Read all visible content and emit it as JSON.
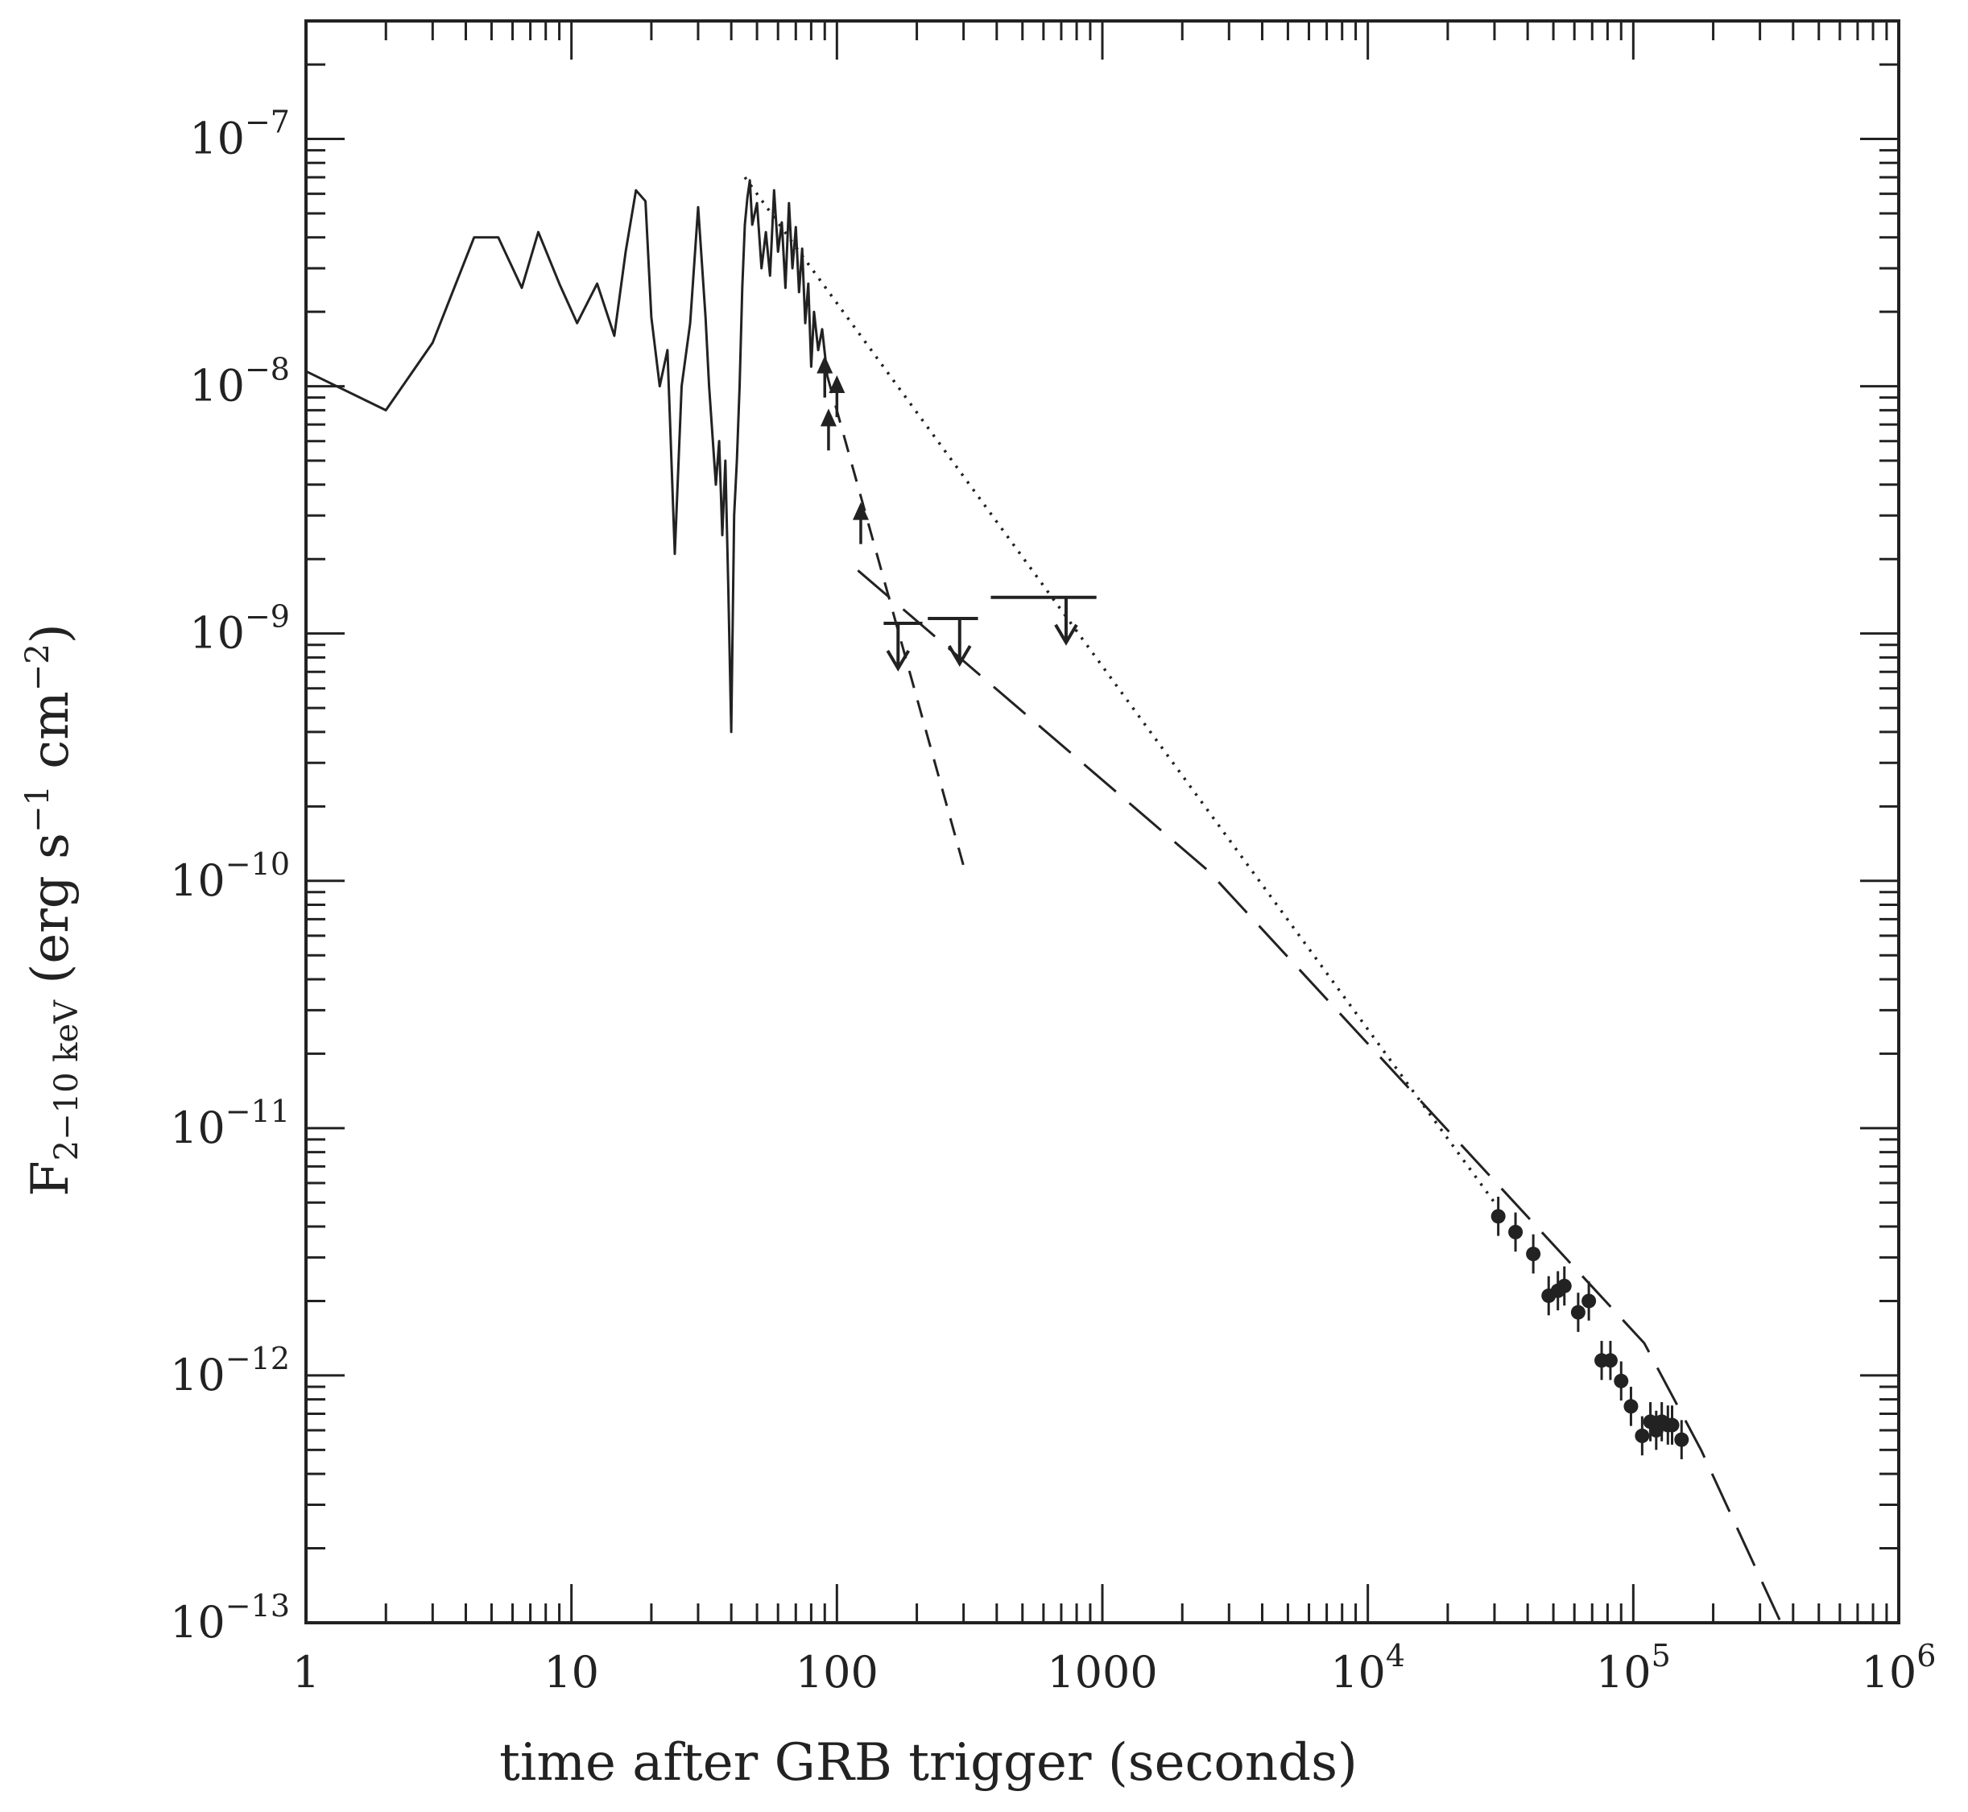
{
  "chart_data": {
    "type": "line",
    "title": "",
    "xlabel": "time after GRB trigger (seconds)",
    "ylabel_parts": {
      "main": "F",
      "sub": "2−10 keV",
      "rest": " (erg s",
      "sup1": "−1",
      "mid": " cm",
      "sup2": "−2",
      "end": ")"
    },
    "x_scale": "log",
    "y_scale": "log",
    "xlim": [
      1,
      1000000
    ],
    "ylim": [
      1e-13,
      3e-07
    ],
    "grid": false,
    "x_ticks": [
      {
        "value": 1,
        "base": "1",
        "exp": ""
      },
      {
        "value": 10,
        "base": "10",
        "exp": ""
      },
      {
        "value": 100,
        "base": "100",
        "exp": ""
      },
      {
        "value": 1000,
        "base": "1000",
        "exp": ""
      },
      {
        "value": 10000,
        "base": "10",
        "exp": "4"
      },
      {
        "value": 100000,
        "base": "10",
        "exp": "5"
      },
      {
        "value": 1000000,
        "base": "10",
        "exp": "6"
      }
    ],
    "y_ticks": [
      {
        "value": 1e-07,
        "base": "10",
        "exp": "−7"
      },
      {
        "value": 1e-08,
        "base": "10",
        "exp": "−8"
      },
      {
        "value": 1e-09,
        "base": "10",
        "exp": "−9"
      },
      {
        "value": 1e-10,
        "base": "10",
        "exp": "−10"
      },
      {
        "value": 1e-11,
        "base": "10",
        "exp": "−11"
      },
      {
        "value": 1e-12,
        "base": "10",
        "exp": "−12"
      },
      {
        "value": 1e-13,
        "base": "10",
        "exp": "−13"
      }
    ],
    "series": [
      {
        "style": "solid",
        "x": [
          1,
          2,
          3,
          4.3,
          5.3,
          6.5,
          7.5,
          9,
          10.5,
          12.5,
          14.5,
          16,
          17.5,
          19,
          20,
          21.5,
          23,
          24.5,
          26,
          28,
          30,
          32,
          33,
          35,
          36,
          37,
          38,
          39,
          40,
          41,
          42,
          43,
          44,
          45,
          46,
          47,
          48,
          50,
          52,
          54,
          56,
          58,
          60,
          62,
          64,
          66,
          68,
          70,
          72,
          74,
          76,
          78,
          80,
          82,
          85,
          88,
          92
        ],
        "y": [
          1.15e-08,
          8e-09,
          1.5e-08,
          4e-08,
          4e-08,
          2.5e-08,
          4.2e-08,
          2.6e-08,
          1.8e-08,
          2.6e-08,
          1.6e-08,
          3.5e-08,
          6.2e-08,
          5.6e-08,
          1.9e-08,
          1e-08,
          1.4e-08,
          2.1e-09,
          1e-08,
          1.8e-08,
          5.3e-08,
          1.9e-08,
          1e-08,
          4e-09,
          6e-09,
          2.5e-09,
          5e-09,
          1.5e-09,
          4e-10,
          3e-09,
          5e-09,
          1e-08,
          2.5e-08,
          4.5e-08,
          5.8e-08,
          6.8e-08,
          4.5e-08,
          5.5e-08,
          3e-08,
          4.2e-08,
          2.8e-08,
          6.2e-08,
          3.5e-08,
          4.6e-08,
          2.5e-08,
          5.5e-08,
          3e-08,
          4.4e-08,
          2.4e-08,
          3.6e-08,
          1.8e-08,
          2.6e-08,
          1.2e-08,
          2e-08,
          1.4e-08,
          1.7e-08,
          1.1e-08
        ]
      },
      {
        "style": "short-dash",
        "x": [
          92,
          300
        ],
        "y": [
          1.1e-08,
          1.15e-10
        ]
      },
      {
        "style": "long-dash",
        "x": [
          120,
          2500,
          110000,
          180000,
          360000
        ],
        "y": [
          1.8e-09,
          1.1e-10,
          1.35e-12,
          5e-13,
          1e-13
        ]
      },
      {
        "style": "dotted",
        "x": [
          45,
          30000
        ],
        "y": [
          7e-08,
          5e-12
        ]
      }
    ],
    "upper_limits": [
      {
        "x": 170,
        "x_lo": 150,
        "x_hi": 210,
        "y": 1.1e-09
      },
      {
        "x": 290,
        "x_lo": 220,
        "x_hi": 340,
        "y": 1.15e-09
      },
      {
        "x": 730,
        "x_lo": 380,
        "x_hi": 950,
        "y": 1.4e-09
      }
    ],
    "lower_limits": [
      {
        "x": 90,
        "y": 9e-09
      },
      {
        "x": 93,
        "y": 5.5e-09
      },
      {
        "x": 100,
        "y": 7.5e-09
      },
      {
        "x": 123,
        "y": 2.3e-09
      }
    ],
    "points": {
      "x": [
        31000,
        36000,
        42000,
        48000,
        52000,
        55000,
        62000,
        68000,
        76000,
        82000,
        90000,
        98000,
        108000,
        116000,
        122000,
        128000,
        135000,
        140000,
        152000
      ],
      "y": [
        4.4e-12,
        3.8e-12,
        3.1e-12,
        2.1e-12,
        2.2e-12,
        2.3e-12,
        1.8e-12,
        2e-12,
        1.15e-12,
        1.15e-12,
        9.5e-13,
        7.5e-13,
        5.7e-13,
        6.5e-13,
        6e-13,
        6.5e-13,
        6.3e-13,
        6.3e-13,
        5.5e-13
      ],
      "yerr_factor": 1.2
    }
  }
}
